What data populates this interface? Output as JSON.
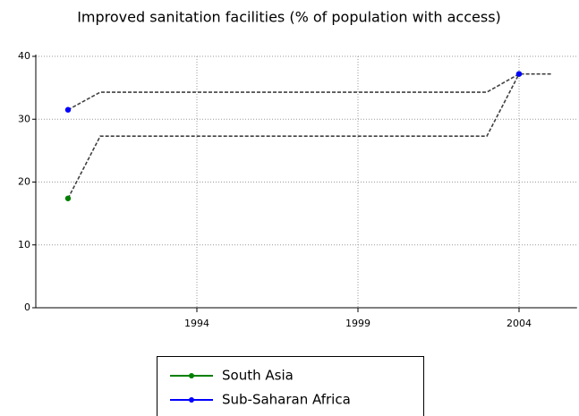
{
  "chart_data": {
    "type": "line",
    "title": "Improved sanitation facilities (% of population with access)",
    "x": [
      1990,
      1991,
      2003,
      2004,
      2005
    ],
    "series": [
      {
        "name": "South Asia",
        "color": "#008000",
        "values": [
          17.4,
          27.3,
          27.3,
          37.2,
          null
        ]
      },
      {
        "name": "Sub-Saharan Africa",
        "color": "#0000ff",
        "values": [
          31.5,
          34.3,
          34.3,
          37.2,
          37.2
        ]
      }
    ],
    "marker_x": [
      1990,
      2004
    ],
    "line_color": "#404040",
    "line_style": "dashed",
    "xlim": [
      1989,
      2005.8
    ],
    "xticks": [
      1994,
      1999,
      2004
    ],
    "ylim": [
      0,
      40
    ],
    "yticks": [
      0,
      10,
      20,
      30,
      40
    ],
    "grid": true,
    "legend": "bottom"
  }
}
